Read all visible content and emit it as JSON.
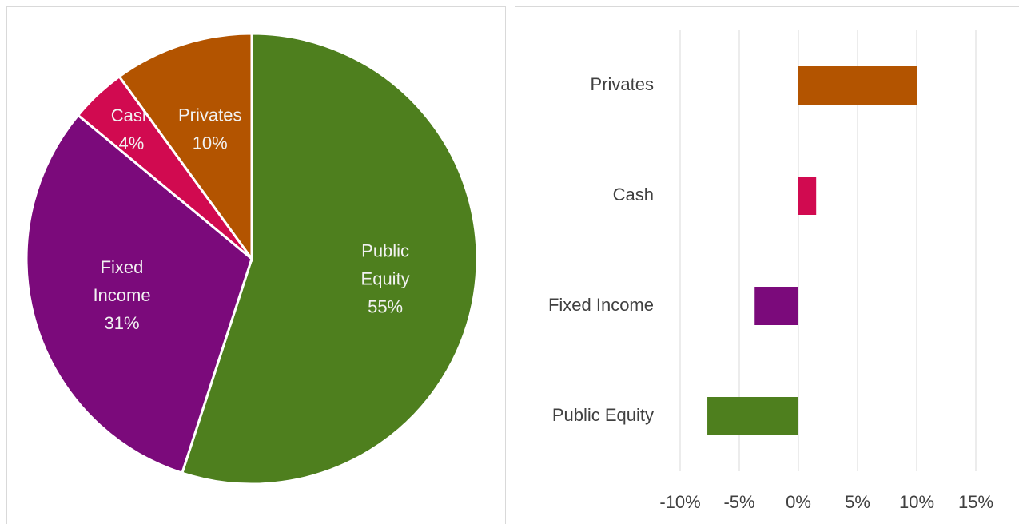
{
  "chart_data": [
    {
      "type": "pie",
      "categories": [
        "Public Equity",
        "Fixed Income",
        "Cash",
        "Privates"
      ],
      "values": [
        55,
        31,
        4,
        10
      ],
      "value_labels": [
        "55%",
        "31%",
        "4%",
        "10%"
      ],
      "colors": [
        "#4e7f1e",
        "#7b0a7b",
        "#d10a50",
        "#b35400"
      ]
    },
    {
      "type": "bar",
      "orientation": "horizontal",
      "categories": [
        "Privates",
        "Cash",
        "Fixed Income",
        "Public Equity"
      ],
      "values": [
        10,
        1.5,
        -3.7,
        -7.7
      ],
      "colors": [
        "#b35400",
        "#d10a50",
        "#7b0a7b",
        "#4e7f1e"
      ],
      "xlim": [
        -10,
        15
      ],
      "xticks": [
        {
          "value": -10,
          "label": "-10%"
        },
        {
          "value": -5,
          "label": "-5%"
        },
        {
          "value": 0,
          "label": "0%"
        },
        {
          "value": 5,
          "label": "5%"
        },
        {
          "value": 10,
          "label": "10%"
        },
        {
          "value": 15,
          "label": "15%"
        }
      ],
      "grid": true
    }
  ]
}
